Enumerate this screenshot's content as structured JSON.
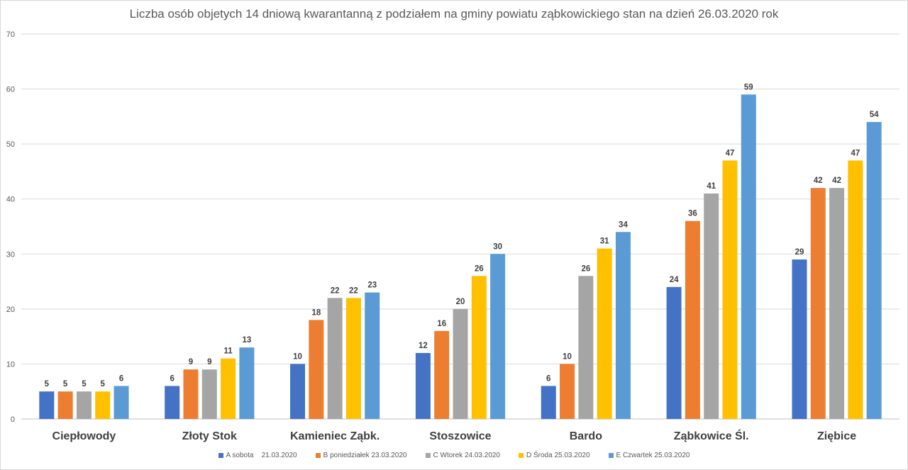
{
  "chart_data": {
    "type": "bar",
    "title": "Liczba osób objetych 14 dniową kwarantanną z podziałem na gminy powiatu ząbkowickiego stan na dzień 26.03.2020 rok",
    "categories": [
      "Ciepłowody",
      "Złoty Stok",
      "Kamieniec Ząbk.",
      "Stoszowice",
      "Bardo",
      "Ząbkowice Śl.",
      "Ziębice"
    ],
    "series": [
      {
        "name": "A sobota    21.03.2020",
        "color": "#4472c4",
        "values": [
          5,
          6,
          10,
          12,
          6,
          24,
          29
        ]
      },
      {
        "name": "B poniedziałek 23.03.2020",
        "color": "#ed7d31",
        "values": [
          5,
          9,
          18,
          16,
          10,
          36,
          42
        ]
      },
      {
        "name": "C Wtorek 24.03.2020",
        "color": "#a5a5a5",
        "values": [
          5,
          9,
          22,
          20,
          26,
          41,
          42
        ]
      },
      {
        "name": "D Środa 25.03.2020",
        "color": "#ffc000",
        "values": [
          5,
          11,
          22,
          26,
          31,
          47,
          47
        ]
      },
      {
        "name": "E Czwartek 25.03.2020",
        "color": "#5b9bd5",
        "values": [
          6,
          13,
          23,
          30,
          34,
          59,
          54
        ]
      }
    ],
    "ylim": [
      0,
      70
    ],
    "yticks": [
      0,
      10,
      20,
      30,
      40,
      50,
      60,
      70
    ],
    "grid": true,
    "legend_position": "bottom",
    "data_labels": true
  }
}
